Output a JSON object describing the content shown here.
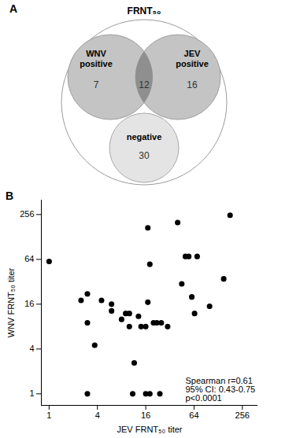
{
  "chart_data": [
    {
      "type": "venn",
      "panel": "A",
      "title": "FRNT₅₀",
      "sets": [
        {
          "label": "WNV positive",
          "value": 7,
          "color": "#c4c4c4"
        },
        {
          "label": "JEV positive",
          "value": 16,
          "color": "#c4c4c4"
        }
      ],
      "overlap": {
        "value": 12,
        "color": "#8f8f8f"
      },
      "outside": {
        "label": "negative",
        "value": 30,
        "color": "#e4e4e4"
      }
    },
    {
      "type": "scatter",
      "panel": "B",
      "xlabel": "JEV FRNT₅₀ titer",
      "ylabel": "WNV FRNT₅₀ titer",
      "x": [
        1,
        2.5,
        3,
        3,
        3,
        3.7,
        4.5,
        6,
        6,
        8,
        9,
        10,
        10,
        11,
        11.5,
        13,
        14,
        16,
        16,
        17,
        17,
        18,
        18,
        20,
        22,
        24,
        25,
        30,
        40,
        45,
        50,
        55,
        60,
        65,
        70,
        100,
        150,
        180
      ],
      "values": [
        60,
        18,
        22,
        9,
        1,
        4.5,
        18,
        16,
        13,
        10,
        12,
        12,
        8,
        1,
        2.6,
        11,
        8,
        8,
        1,
        17,
        170,
        55,
        1,
        9,
        9,
        1,
        9,
        8,
        200,
        30,
        70,
        70,
        20,
        12,
        70,
        15,
        35,
        250
      ],
      "xlim": [
        0.8,
        400
      ],
      "ylim": [
        0.7,
        400
      ],
      "xticks": [
        1,
        4,
        16,
        64,
        256
      ],
      "yticks": [
        1,
        4,
        16,
        64,
        256
      ],
      "log": true,
      "color": "#000000",
      "annotation": [
        "Spearman r=0.61",
        "95% CI: 0.43-0.75",
        "p<0.0001"
      ]
    }
  ]
}
